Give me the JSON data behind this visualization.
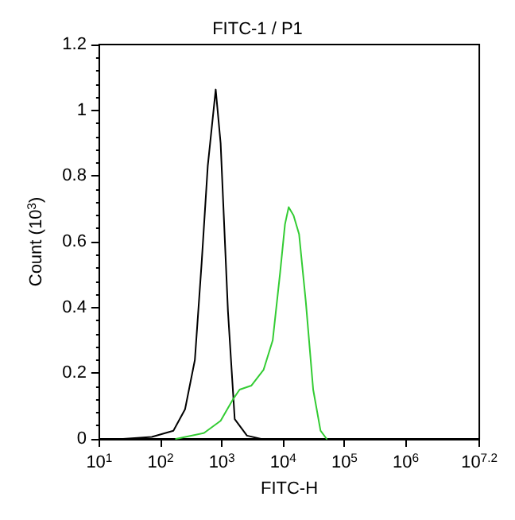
{
  "chart_data": {
    "type": "line",
    "title": "FITC-1 / P1",
    "xlabel": "FITC-H",
    "ylabel": "Count (10$^{3}$)",
    "log": "x",
    "grid": false,
    "marker": "none",
    "line_style": "solid",
    "xlim": [
      10,
      15848932
    ],
    "ylim": [
      0,
      1.2
    ],
    "xticks": [
      {
        "value": 10,
        "label": "10$^{1}$"
      },
      {
        "value": 100,
        "label": "10$^{2}$"
      },
      {
        "value": 1000,
        "label": "10$^{3}$"
      },
      {
        "value": 10000,
        "label": "10$^{4}$"
      },
      {
        "value": 100000,
        "label": "10$^{5}$"
      },
      {
        "value": 1000000,
        "label": "10$^{6}$"
      },
      {
        "value": 15848932,
        "label": "10$^{7.2}$"
      }
    ],
    "yticks": [
      0,
      0.2,
      0.4,
      0.6,
      0.8,
      1,
      1.2
    ],
    "series": [
      {
        "color": "#000000",
        "x": [
          24.5,
          72,
          162,
          251,
          363,
          468,
          589,
          794,
          955,
          1259,
          1622,
          2570,
          4365
        ],
        "values": [
          0,
          0.006,
          0.025,
          0.09,
          0.24,
          0.535,
          0.83,
          1.063,
          0.9,
          0.387,
          0.06,
          0.01,
          0
        ]
      },
      {
        "color": "#33cc33",
        "x": [
          178,
          513,
          955,
          1514,
          1950,
          3020,
          4786,
          6761,
          8913,
          10715,
          12303,
          14791,
          18197,
          23442,
          30903,
          40738,
          51286
        ],
        "values": [
          0,
          0.018,
          0.055,
          0.12,
          0.15,
          0.162,
          0.21,
          0.3,
          0.505,
          0.653,
          0.705,
          0.68,
          0.623,
          0.417,
          0.15,
          0.025,
          0
        ]
      }
    ]
  }
}
